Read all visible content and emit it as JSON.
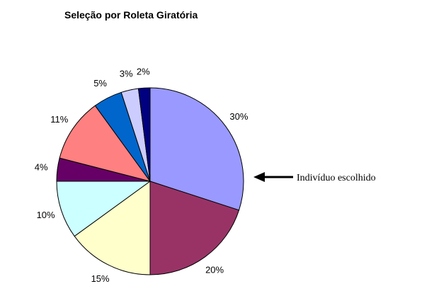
{
  "chart_data": {
    "type": "pie",
    "title": "Seleção por Roleta Giratória",
    "slices": [
      {
        "label": "30%",
        "value": 30,
        "color": "#9999ff"
      },
      {
        "label": "20%",
        "value": 20,
        "color": "#993366"
      },
      {
        "label": "15%",
        "value": 15,
        "color": "#ffffcc"
      },
      {
        "label": "10%",
        "value": 10,
        "color": "#ccffff"
      },
      {
        "label": "4%",
        "value": 4,
        "color": "#660066"
      },
      {
        "label": "11%",
        "value": 11,
        "color": "#ff8080"
      },
      {
        "label": "5%",
        "value": 5,
        "color": "#0066cc"
      },
      {
        "label": "3%",
        "value": 3,
        "color": "#ccccff"
      },
      {
        "label": "2%",
        "value": 2,
        "color": "#000080"
      }
    ],
    "start": "12 o'clock",
    "direction": "clockwise",
    "annotation": {
      "text": "Indivíduo escolhido",
      "icon": "arrow-left-icon",
      "points_to": "30%"
    },
    "legend": "none"
  }
}
